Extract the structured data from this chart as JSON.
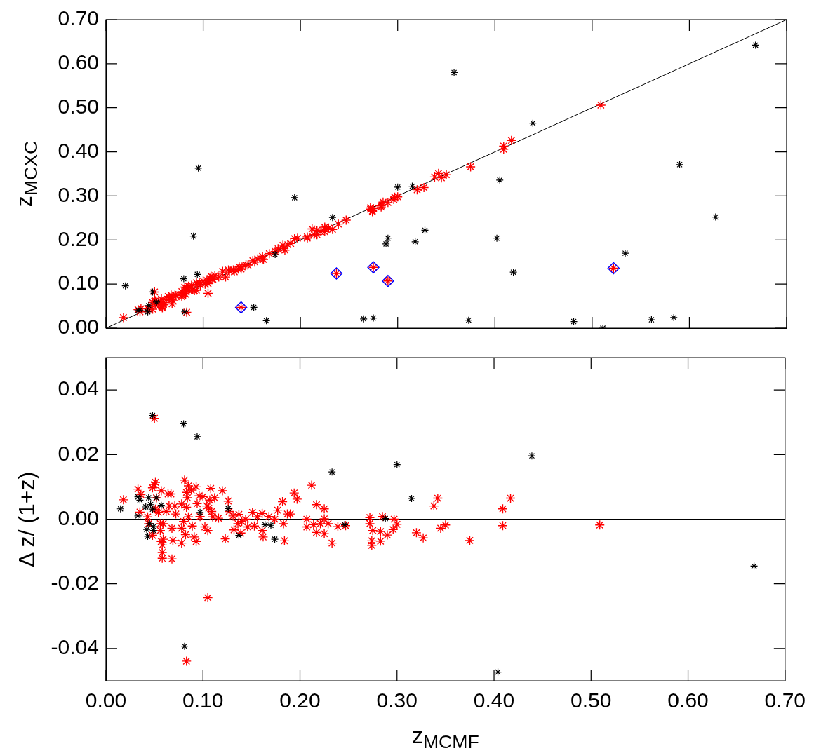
{
  "chart_data": [
    {
      "type": "scatter",
      "ylabel": "z$_{MCXC}$",
      "xlim": [
        0,
        0.7
      ],
      "ylim": [
        0,
        0.7
      ],
      "xticks": [
        0,
        0.1,
        0.2,
        0.3,
        0.4,
        0.5,
        0.6,
        0.7
      ],
      "yticks": [
        {
          "value": 0,
          "label": "0.00"
        },
        {
          "value": 0.1,
          "label": "0.10"
        },
        {
          "value": 0.2,
          "label": "0.20"
        },
        {
          "value": 0.3,
          "label": "0.30"
        },
        {
          "value": 0.4,
          "label": "0.40"
        },
        {
          "value": 0.5,
          "label": "0.50"
        },
        {
          "value": 0.6,
          "label": "0.60"
        },
        {
          "value": 0.7,
          "label": "0.70"
        }
      ],
      "tick_labels": "y",
      "grid": false,
      "series": [
        {
          "type": "line",
          "color": "#000000",
          "marker": "none",
          "x": [
            0,
            0.7
          ],
          "values": [
            0,
            0.7
          ]
        },
        {
          "color": "#000000",
          "marker": "cross",
          "x": [
            0.02,
            0.033,
            0.035,
            0.044,
            0.043,
            0.052,
            0.048,
            0.08,
            0.094,
            0.081,
            0.09,
            0.095,
            0.152,
            0.165,
            0.174,
            0.194,
            0.233,
            0.265,
            0.275,
            0.288,
            0.29,
            0.3,
            0.315,
            0.318,
            0.328,
            0.358,
            0.373,
            0.402,
            0.405,
            0.419,
            0.439,
            0.481,
            0.511,
            0.534,
            0.561,
            0.584,
            0.59,
            0.627,
            0.668
          ],
          "values": [
            0.096,
            0.04,
            0.041,
            0.051,
            0.037,
            0.059,
            0.082,
            0.112,
            0.122,
            0.037,
            0.209,
            0.363,
            0.047,
            0.017,
            0.167,
            0.296,
            0.251,
            0.021,
            0.023,
            0.191,
            0.204,
            0.32,
            0.322,
            0.196,
            0.222,
            0.58,
            0.018,
            0.204,
            0.336,
            0.127,
            0.465,
            0.015,
            0.0,
            0.17,
            0.019,
            0.024,
            0.371,
            0.252,
            0.642
          ]
        },
        {
          "color": "#ff0000",
          "marker": "cross",
          "x": [
            0.018,
            0.033,
            0.035,
            0.036,
            0.043,
            0.044,
            0.048,
            0.048,
            0.05,
            0.051,
            0.051,
            0.052,
            0.054,
            0.056,
            0.056,
            0.057,
            0.057,
            0.058,
            0.058,
            0.058,
            0.059,
            0.059,
            0.062,
            0.064,
            0.067,
            0.065,
            0.068,
            0.068,
            0.069,
            0.071,
            0.072,
            0.078,
            0.078,
            0.078,
            0.08,
            0.081,
            0.082,
            0.083,
            0.083,
            0.084,
            0.085,
            0.085,
            0.088,
            0.089,
            0.091,
            0.093,
            0.093,
            0.094,
            0.096,
            0.097,
            0.1,
            0.102,
            0.104,
            0.105,
            0.105,
            0.106,
            0.107,
            0.108,
            0.109,
            0.11,
            0.112,
            0.116,
            0.12,
            0.123,
            0.126,
            0.127,
            0.131,
            0.132,
            0.136,
            0.137,
            0.139,
            0.14,
            0.144,
            0.146,
            0.151,
            0.153,
            0.156,
            0.161,
            0.161,
            0.162,
            0.168,
            0.174,
            0.177,
            0.182,
            0.183,
            0.184,
            0.187,
            0.19,
            0.194,
            0.197,
            0.207,
            0.207,
            0.212,
            0.214,
            0.217,
            0.217,
            0.221,
            0.225,
            0.225,
            0.225,
            0.229,
            0.233,
            0.239,
            0.247,
            0.272,
            0.272,
            0.274,
            0.274,
            0.275,
            0.285,
            0.297,
            0.3,
            0.283,
            0.296,
            0.29,
            0.283,
            0.32,
            0.327,
            0.338,
            0.342,
            0.345,
            0.35,
            0.375,
            0.409,
            0.409,
            0.417,
            0.509,
            0.05,
            0.083,
            0.139,
            0.237,
            0.275,
            0.29,
            0.522
          ],
          "values": [
            0.024,
            0.042,
            0.037,
            0.044,
            0.044,
            0.043,
            0.043,
            0.058,
            0.061,
            0.062,
            0.054,
            0.059,
            0.056,
            0.053,
            0.055,
            0.066,
            0.05,
            0.05,
            0.048,
            0.046,
            0.053,
            0.058,
            0.064,
            0.072,
            0.075,
            0.069,
            0.065,
            0.055,
            0.062,
            0.075,
            0.074,
            0.083,
            0.075,
            0.071,
            0.079,
            0.093,
            0.077,
            0.087,
            0.091,
            0.091,
            0.095,
            0.086,
            0.097,
            0.087,
            0.085,
            0.103,
            0.086,
            0.099,
            0.103,
            0.098,
            0.107,
            0.1,
            0.108,
            0.101,
            0.079,
            0.109,
            0.113,
            0.118,
            0.111,
            0.111,
            0.119,
            0.116,
            0.129,
            0.116,
            0.132,
            0.129,
            0.132,
            0.128,
            0.134,
            0.139,
            0.134,
            0.139,
            0.144,
            0.143,
            0.153,
            0.15,
            0.157,
            0.163,
            0.157,
            0.156,
            0.169,
            0.174,
            0.18,
            0.188,
            0.181,
            0.177,
            0.189,
            0.192,
            0.203,
            0.204,
            0.207,
            0.204,
            0.225,
            0.212,
            0.222,
            0.212,
            0.219,
            0.229,
            0.219,
            0.225,
            0.227,
            0.224,
            0.236,
            0.245,
            0.273,
            0.27,
            0.266,
            0.264,
            0.271,
            0.286,
            0.297,
            0.298,
            0.278,
            0.292,
            0.285,
            0.275,
            0.314,
            0.319,
            0.343,
            0.351,
            0.341,
            0.348,
            0.366,
            0.413,
            0.406,
            0.426,
            0.506,
            0.082,
            0.036,
            0.047,
            0.124,
            0.138,
            0.107,
            0.136
          ]
        },
        {
          "color": "#0000ff",
          "marker": "diamond",
          "x": [
            0.139,
            0.237,
            0.275,
            0.29,
            0.522
          ],
          "values": [
            0.047,
            0.124,
            0.138,
            0.107,
            0.136
          ]
        }
      ]
    },
    {
      "type": "scatter",
      "xlabel": "z$_{MCMF}$",
      "ylabel": "Δ z/ (1+z)",
      "xlim": [
        0,
        0.7
      ],
      "ylim": [
        -0.05,
        0.05
      ],
      "xticks": [
        {
          "value": 0,
          "label": "0.00"
        },
        {
          "value": 0.1,
          "label": "0.10"
        },
        {
          "value": 0.2,
          "label": "0.20"
        },
        {
          "value": 0.3,
          "label": "0.30"
        },
        {
          "value": 0.4,
          "label": "0.40"
        },
        {
          "value": 0.5,
          "label": "0.50"
        },
        {
          "value": 0.6,
          "label": "0.60"
        },
        {
          "value": 0.7,
          "label": "0.70"
        }
      ],
      "yticks": [
        -0.04,
        -0.02,
        {
          "value": 0,
          "label": "0.00"
        },
        0.02,
        0.04
      ],
      "grid": false,
      "ref_lines": [
        {
          "axis": "y",
          "value": 0
        }
      ],
      "series": [
        {
          "color": "#000000",
          "marker": "cross",
          "x": [
            0.015,
            0.033,
            0.033,
            0.035,
            0.041,
            0.044,
            0.042,
            0.043,
            0.045,
            0.046,
            0.048,
            0.049,
            0.049,
            0.052,
            0.057,
            0.048,
            0.08,
            0.094,
            0.081,
            0.233,
            0.097,
            0.126,
            0.137,
            0.164,
            0.17,
            0.174,
            0.246,
            0.3,
            0.315,
            0.439,
            0.404,
            0.668,
            0.288
          ],
          "values": [
            0.0032,
            0.0069,
            0.001,
            0.0059,
            0.0038,
            0.0066,
            -0.0032,
            -0.0053,
            -0.0014,
            0.0045,
            0.0031,
            -0.0023,
            -0.0035,
            0.0066,
            0.0043,
            0.0321,
            0.0295,
            0.0255,
            -0.0393,
            0.0146,
            0.0021,
            0.0033,
            -0.005,
            -0.0017,
            -0.0019,
            -0.0062,
            -0.0017,
            0.0169,
            0.0064,
            0.0196,
            -0.0473,
            -0.0145,
            0.0002
          ]
        },
        {
          "color": "#ff0000",
          "marker": "cross",
          "x": [
            0.018,
            0.033,
            0.035,
            0.036,
            0.043,
            0.044,
            0.048,
            0.048,
            0.05,
            0.051,
            0.051,
            0.052,
            0.054,
            0.056,
            0.056,
            0.057,
            0.057,
            0.058,
            0.058,
            0.058,
            0.059,
            0.059,
            0.062,
            0.064,
            0.067,
            0.065,
            0.068,
            0.068,
            0.069,
            0.071,
            0.072,
            0.078,
            0.078,
            0.078,
            0.08,
            0.081,
            0.082,
            0.083,
            0.083,
            0.084,
            0.085,
            0.085,
            0.088,
            0.089,
            0.091,
            0.093,
            0.093,
            0.094,
            0.096,
            0.097,
            0.1,
            0.102,
            0.104,
            0.105,
            0.105,
            0.106,
            0.107,
            0.108,
            0.109,
            0.11,
            0.112,
            0.116,
            0.12,
            0.123,
            0.126,
            0.127,
            0.131,
            0.132,
            0.136,
            0.137,
            0.139,
            0.14,
            0.144,
            0.146,
            0.151,
            0.153,
            0.156,
            0.161,
            0.161,
            0.162,
            0.168,
            0.174,
            0.177,
            0.182,
            0.183,
            0.184,
            0.187,
            0.19,
            0.194,
            0.197,
            0.207,
            0.207,
            0.212,
            0.214,
            0.217,
            0.217,
            0.221,
            0.225,
            0.225,
            0.225,
            0.229,
            0.233,
            0.239,
            0.247,
            0.272,
            0.272,
            0.274,
            0.274,
            0.275,
            0.285,
            0.297,
            0.3,
            0.283,
            0.296,
            0.29,
            0.283,
            0.32,
            0.327,
            0.338,
            0.342,
            0.345,
            0.35,
            0.375,
            0.409,
            0.409,
            0.417,
            0.509,
            0.05,
            0.083
          ],
          "values": [
            0.006,
            0.0093,
            0.0022,
            0.0076,
            0.0007,
            -0.0014,
            -0.005,
            0.0097,
            0.0107,
            0.0114,
            0.0031,
            0.0066,
            0.0021,
            -0.0035,
            -0.0014,
            0.0088,
            -0.0069,
            -0.008,
            -0.0103,
            -0.0121,
            -0.0062,
            -0.0014,
            0.0024,
            0.0078,
            0.0078,
            0.0041,
            -0.0028,
            -0.0123,
            -0.0066,
            0.0041,
            0.0016,
            0.0047,
            -0.0028,
            -0.0074,
            -0.0007,
            0.0121,
            -0.0048,
            0.0037,
            0.0083,
            0.0066,
            0.0103,
            0.0007,
            0.009,
            -0.0021,
            -0.0055,
            0.01,
            -0.0069,
            0.0048,
            0.0072,
            0.0008,
            0.007,
            -0.0024,
            0.0041,
            -0.0035,
            -0.0243,
            0.0034,
            0.0059,
            0.0095,
            0.0024,
            0.0007,
            0.0066,
            0.0003,
            0.0088,
            -0.0061,
            0.0056,
            0.0024,
            0.001,
            -0.0033,
            -0.0014,
            0.0015,
            -0.0043,
            -0.0007,
            0.0,
            -0.0024,
            0.0021,
            -0.0021,
            0.0007,
            0.0018,
            -0.0035,
            -0.0055,
            0.0008,
            0.0,
            0.0028,
            0.0054,
            -0.0014,
            -0.0067,
            0.0016,
            0.0016,
            0.0081,
            0.0062,
            0.0,
            -0.0024,
            0.0105,
            -0.0017,
            0.0045,
            -0.0041,
            -0.0014,
            0.0032,
            -0.0045,
            0.0001,
            -0.0014,
            -0.0074,
            -0.0023,
            -0.002,
            0.0005,
            -0.0014,
            -0.0067,
            -0.0081,
            -0.0035,
            0.0008,
            0.0,
            -0.0016,
            -0.0038,
            -0.0032,
            -0.0049,
            -0.0068,
            -0.0042,
            -0.0058,
            0.0041,
            0.0065,
            -0.0028,
            -0.0018,
            -0.0066,
            0.0032,
            -0.002,
            0.0065,
            -0.0018,
            0.0312,
            -0.0439
          ]
        }
      ]
    }
  ]
}
